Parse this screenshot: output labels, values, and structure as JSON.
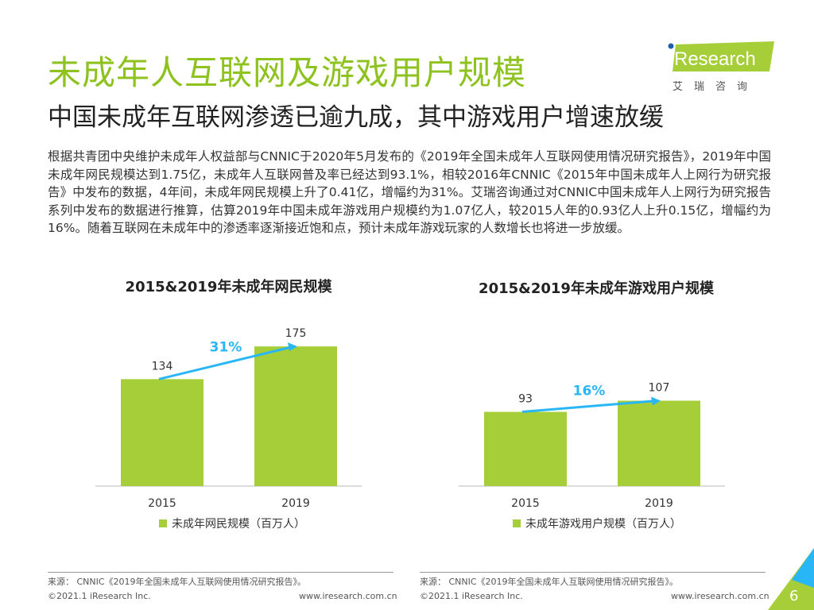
{
  "header": {
    "title": "未成年人互联网及游戏用户规模",
    "subtitle": "中国未成年互联网渗透已逾九成，其中游戏用户增速放缓"
  },
  "logo": {
    "text": "iResearch",
    "cn": "艾瑞咨询"
  },
  "body_text": "根据共青团中央维护未成年人权益部与CNNIC于2020年5月发布的《2019年全国未成年人互联网使用情况研究报告》，2019年中国未成年网民规模达到1.75亿，未成年人互联网普及率已经达到93.1%，相较2016年CNNIC《2015年中国未成年人上网行为研究报告》中发布的数据，4年间，未成年网民规模上升了0.41亿，增幅约为31%。艾瑞咨询通过对CNNIC中国未成年人上网行为研究报告系列中发布的数据进行推算，估算2019年中国未成年游戏用户规模约为1.07亿人，较2015人年的0.93亿人上升0.15亿，增幅约为16%。随着互联网在未成年中的渗透率逐渐接近饱和点，预计未成年游戏玩家的人数增长也将进一步放缓。",
  "colors": {
    "bar": "#a6ce39",
    "title": "#8dc21f",
    "arrow": "#29b6f6"
  },
  "chart_data": [
    {
      "type": "bar",
      "title": "2015&2019年未成年网民规模",
      "categories": [
        "2015",
        "2019"
      ],
      "values": [
        134,
        175
      ],
      "growth_label": "31%",
      "legend": "未成年网民规模（百万人）"
    },
    {
      "type": "bar",
      "title": "2015&2019年未成年游戏用户规模",
      "categories": [
        "2015",
        "2019"
      ],
      "values": [
        93,
        107
      ],
      "growth_label": "16%",
      "legend": "未成年游戏用户规模（百万人）"
    }
  ],
  "footer": {
    "source": "来源： CNNIC《2019年全国未成年人互联网使用情况研究报告》。",
    "copyright": "©2021.1 iResearch Inc.",
    "url": "www.iresearch.com.cn",
    "page": "6"
  }
}
